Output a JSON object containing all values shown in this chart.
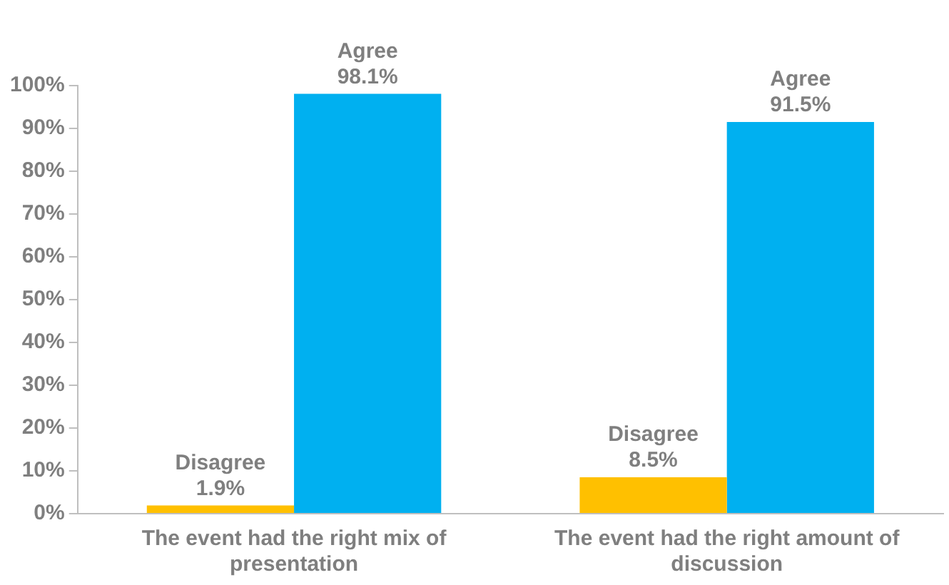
{
  "chart_data": {
    "type": "bar",
    "categories": [
      "The event had the right mix of presentation",
      "The event had the right amount of discussion"
    ],
    "series": [
      {
        "name": "Disagree",
        "color": "#ffc000",
        "values": [
          1.9,
          8.5
        ],
        "value_labels": [
          "1.9%",
          "8.5%"
        ]
      },
      {
        "name": "Agree",
        "color": "#00b0f0",
        "values": [
          98.1,
          91.5
        ],
        "value_labels": [
          "98.1%",
          "91.5%"
        ]
      }
    ],
    "ylim": [
      0,
      100
    ],
    "yticks": [
      {
        "value": 0,
        "label": "0%"
      },
      {
        "value": 10,
        "label": "10%"
      },
      {
        "value": 20,
        "label": "20%"
      },
      {
        "value": 30,
        "label": "30%"
      },
      {
        "value": 40,
        "label": "40%"
      },
      {
        "value": 50,
        "label": "50%"
      },
      {
        "value": 60,
        "label": "60%"
      },
      {
        "value": 70,
        "label": "70%"
      },
      {
        "value": 80,
        "label": "80%"
      },
      {
        "value": 90,
        "label": "90%"
      },
      {
        "value": 100,
        "label": "100%"
      }
    ],
    "grid": false,
    "legend": false
  }
}
